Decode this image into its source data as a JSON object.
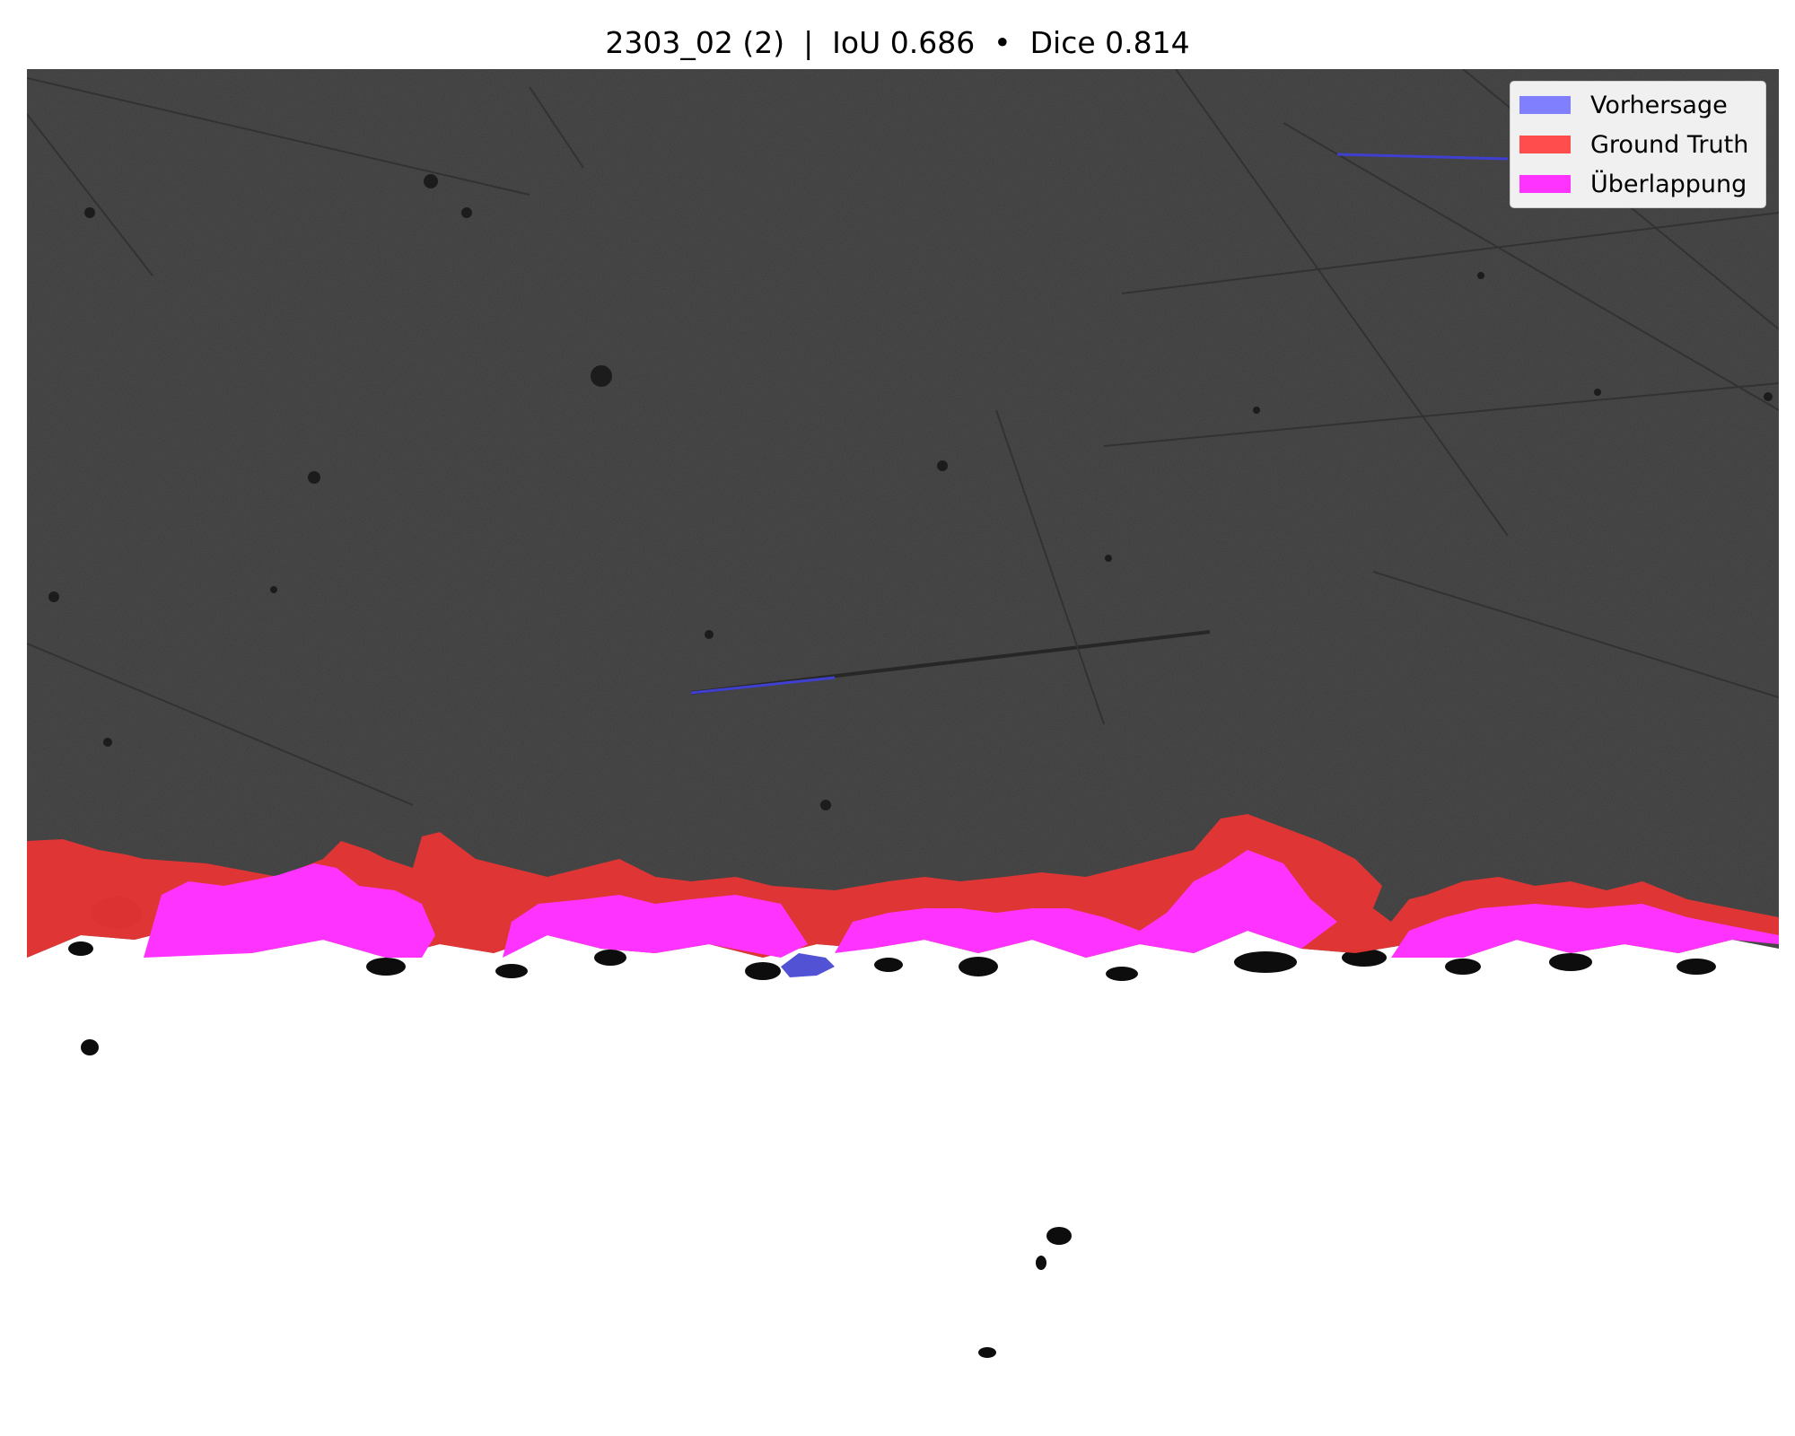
{
  "figure": {
    "title": "2303_02 (2)  |  IoU 0.686  •  Dice 0.814",
    "legend": [
      {
        "label": "Vorhersage",
        "color": "#8080ff"
      },
      {
        "label": "Ground Truth",
        "color": "#ff4d4d"
      },
      {
        "label": "Überlappung",
        "color": "#ff33ff"
      }
    ]
  }
}
